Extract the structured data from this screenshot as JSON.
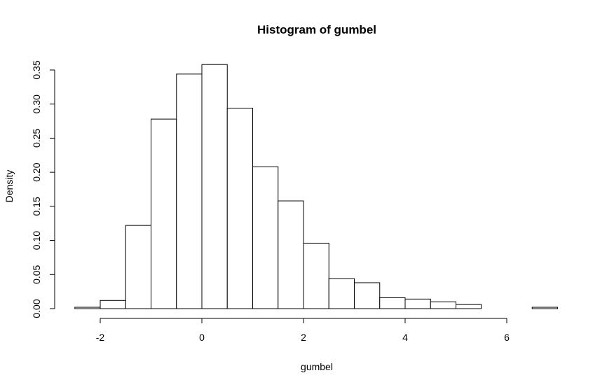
{
  "chart_data": {
    "type": "bar",
    "title": "Histogram of gumbel",
    "xlabel": "gumbel",
    "ylabel": "Density",
    "xlim": [
      -2.5,
      7
    ],
    "ylim": [
      0,
      0.35
    ],
    "x_ticks": [
      -2,
      0,
      2,
      4,
      6
    ],
    "x_tick_labels": [
      "-2",
      "0",
      "2",
      "4",
      "6"
    ],
    "y_ticks": [
      0,
      0.05,
      0.1,
      0.15,
      0.2,
      0.25,
      0.3,
      0.35
    ],
    "y_tick_labels": [
      "0.00",
      "0.05",
      "0.10",
      "0.15",
      "0.20",
      "0.25",
      "0.30",
      "0.35"
    ],
    "grid": false,
    "bins": [
      {
        "x0": -2.5,
        "x1": -2.0,
        "density": 0.002
      },
      {
        "x0": -2.0,
        "x1": -1.5,
        "density": 0.012
      },
      {
        "x0": -1.5,
        "x1": -1.0,
        "density": 0.122
      },
      {
        "x0": -1.0,
        "x1": -0.5,
        "density": 0.278
      },
      {
        "x0": -0.5,
        "x1": 0.0,
        "density": 0.344
      },
      {
        "x0": 0.0,
        "x1": 0.5,
        "density": 0.358
      },
      {
        "x0": 0.5,
        "x1": 1.0,
        "density": 0.294
      },
      {
        "x0": 1.0,
        "x1": 1.5,
        "density": 0.208
      },
      {
        "x0": 1.5,
        "x1": 2.0,
        "density": 0.158
      },
      {
        "x0": 2.0,
        "x1": 2.5,
        "density": 0.096
      },
      {
        "x0": 2.5,
        "x1": 3.0,
        "density": 0.044
      },
      {
        "x0": 3.0,
        "x1": 3.5,
        "density": 0.038
      },
      {
        "x0": 3.5,
        "x1": 4.0,
        "density": 0.016
      },
      {
        "x0": 4.0,
        "x1": 4.5,
        "density": 0.014
      },
      {
        "x0": 4.5,
        "x1": 5.0,
        "density": 0.01
      },
      {
        "x0": 5.0,
        "x1": 5.5,
        "density": 0.006
      },
      {
        "x0": 5.5,
        "x1": 6.0,
        "density": 0.0
      },
      {
        "x0": 6.0,
        "x1": 6.5,
        "density": 0.0
      },
      {
        "x0": 6.5,
        "x1": 7.0,
        "density": 0.002
      }
    ]
  }
}
